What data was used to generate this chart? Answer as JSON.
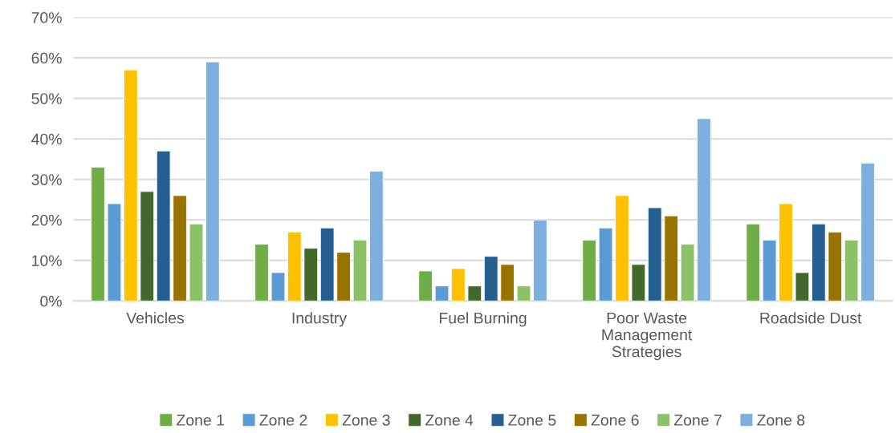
{
  "chart_data": {
    "type": "bar",
    "categories": [
      "Vehicles",
      "Industry",
      "Fuel Burning",
      "Poor Waste\nManagement\nStrategies",
      "Roadside Dust"
    ],
    "series": [
      {
        "name": "Zone 1",
        "color": "#70ad47",
        "values": [
          33,
          14,
          7.4,
          15,
          19
        ]
      },
      {
        "name": "Zone 2",
        "color": "#5b9bd5",
        "values": [
          24,
          7,
          3.7,
          18,
          15
        ]
      },
      {
        "name": "Zone 3",
        "color": "#ffc000",
        "values": [
          57,
          17,
          8,
          26,
          24
        ]
      },
      {
        "name": "Zone 4",
        "color": "#43682b",
        "values": [
          27,
          13,
          3.7,
          9,
          7
        ]
      },
      {
        "name": "Zone 5",
        "color": "#255e91",
        "values": [
          37,
          18,
          11,
          23,
          19
        ]
      },
      {
        "name": "Zone 6",
        "color": "#997300",
        "values": [
          26,
          12,
          9,
          21,
          17
        ]
      },
      {
        "name": "Zone 7",
        "color": "#8cc168",
        "values": [
          19,
          15,
          3.7,
          14,
          15
        ]
      },
      {
        "name": "Zone 8",
        "color": "#7cafdd",
        "values": [
          59,
          32,
          20,
          45,
          34
        ]
      }
    ],
    "ylim": [
      0,
      70
    ],
    "yticks": [
      {
        "value": 0,
        "label": "0%"
      },
      {
        "value": 10,
        "label": "10%"
      },
      {
        "value": 20,
        "label": "20%"
      },
      {
        "value": 30,
        "label": "30%"
      },
      {
        "value": 40,
        "label": "40%"
      },
      {
        "value": 50,
        "label": "50%"
      },
      {
        "value": 60,
        "label": "60%"
      },
      {
        "value": 70,
        "label": "70%"
      }
    ],
    "grid": "y",
    "legend": "bottom"
  }
}
